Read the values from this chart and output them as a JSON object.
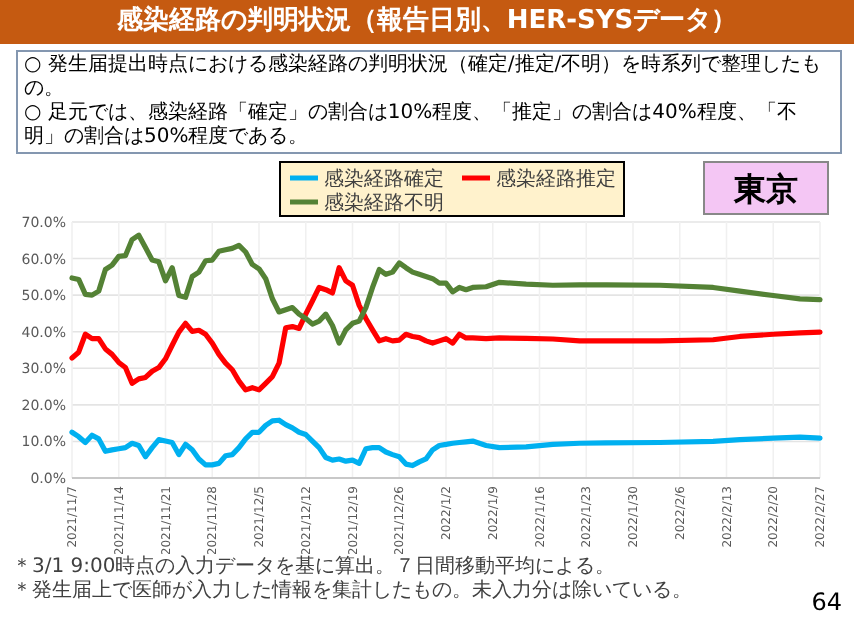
{
  "chart_data": {
    "type": "line",
    "title": "感染経路の判明状況（報告日別、HER-SYSデータ）",
    "annotations": [
      "○ 発生届提出時点における感染経路の判明状況（確定/推定/不明）を時系列で整理したもの。",
      "○ 足元では、感染経路「確定」の割合は10%程度、「推定」の割合は40%程度、「不明」の割合は50%程度である。",
      "東京",
      "＊3/1 9:00時点の入力データを基に算出。７日間移動平均による。",
      "＊発生届上で医師が入力した情報を集計したもの。未入力分は除いている。",
      "64"
    ],
    "x": [
      "2021-11-07",
      "2021-11-08",
      "2021-11-09",
      "2021-11-10",
      "2021-11-11",
      "2021-11-12",
      "2021-11-13",
      "2021-11-14",
      "2021-11-15",
      "2021-11-16",
      "2021-11-17",
      "2021-11-18",
      "2021-11-19",
      "2021-11-20",
      "2021-11-21",
      "2021-11-22",
      "2021-11-23",
      "2021-11-24",
      "2021-11-25",
      "2021-11-26",
      "2021-11-27",
      "2021-11-28",
      "2021-11-29",
      "2021-11-30",
      "2021-12-01",
      "2021-12-02",
      "2021-12-03",
      "2021-12-04",
      "2021-12-05",
      "2021-12-06",
      "2021-12-07",
      "2021-12-08",
      "2021-12-09",
      "2021-12-10",
      "2021-12-11",
      "2021-12-12",
      "2021-12-13",
      "2021-12-14",
      "2021-12-15",
      "2021-12-16",
      "2021-12-17",
      "2021-12-18",
      "2021-12-19",
      "2021-12-20",
      "2021-12-21",
      "2021-12-22",
      "2021-12-23",
      "2021-12-24",
      "2021-12-25",
      "2021-12-26",
      "2021-12-27",
      "2021-12-28",
      "2021-12-29",
      "2021-12-30",
      "2021-12-31",
      "2022-01-01",
      "2022-01-02",
      "2022-01-03",
      "2022-01-04",
      "2022-01-05",
      "2022-01-06",
      "2022-01-08",
      "2022-01-10",
      "2022-01-14",
      "2022-01-18",
      "2022-01-22",
      "2022-01-26",
      "2022-02-03",
      "2022-02-11",
      "2022-02-15",
      "2022-02-20",
      "2022-02-24",
      "2022-02-27"
    ],
    "series": [
      {
        "name": "感染経路確定",
        "color": "#00b0f0",
        "values": [
          12.5,
          11.3,
          9.7,
          11.7,
          10.7,
          7.3,
          7.7,
          8,
          8.3,
          9.5,
          8.9,
          5.8,
          8.3,
          10.5,
          10.1,
          9.7,
          6.4,
          9.2,
          7.7,
          5.2,
          3.6,
          3.6,
          4,
          6.1,
          6.4,
          8.3,
          10.7,
          12.5,
          12.5,
          14.4,
          15.6,
          15.8,
          14.6,
          13.7,
          12.5,
          11.9,
          10.1,
          8.3,
          5.6,
          4.9,
          5.2,
          4.6,
          4.9,
          4,
          8,
          8.3,
          8.3,
          7.1,
          6.4,
          5.8,
          3.8,
          3.4,
          4.4,
          5.2,
          7.7,
          8.9,
          9.2,
          9.5,
          9.7,
          9.9,
          10.1,
          8.9,
          8.3,
          8.5,
          9.2,
          9.5,
          9.6,
          9.7,
          10,
          10.5,
          10.9,
          11.2,
          10.9
        ]
      },
      {
        "name": "感染経路推定",
        "color": "#ff0000",
        "values": [
          32.8,
          34.4,
          39.3,
          38.1,
          38.1,
          35.3,
          33.8,
          31.6,
          30.2,
          25.9,
          27.1,
          27.5,
          29.2,
          30.2,
          32.6,
          36.3,
          39.9,
          42.3,
          40.1,
          40.4,
          39.3,
          36.9,
          33.8,
          31.4,
          29.6,
          26.5,
          24.1,
          24.7,
          24.1,
          25.9,
          27.7,
          31.4,
          41.1,
          41.4,
          40.9,
          44.8,
          48.4,
          52.1,
          51.5,
          50.6,
          57.5,
          53.9,
          52.7,
          47.2,
          43.6,
          40.5,
          37.5,
          38.1,
          37.5,
          37.7,
          39.3,
          38.7,
          38.4,
          37.5,
          36.9,
          37.5,
          38.1,
          36.9,
          39.3,
          38.3,
          38.3,
          38.1,
          38.3,
          38.2,
          38,
          37.5,
          37.5,
          37.5,
          37.8,
          38.7,
          39.3,
          39.7,
          39.9
        ]
      },
      {
        "name": "感染経路不明",
        "color": "#548235",
        "values": [
          54.7,
          54.3,
          50.2,
          50,
          51.1,
          57,
          58.2,
          60.6,
          60.8,
          65.2,
          66.4,
          63,
          59.6,
          59.1,
          53.9,
          57.5,
          49.9,
          49.4,
          55.1,
          56.3,
          59.4,
          59.6,
          62,
          62.4,
          62.8,
          63.6,
          61.8,
          58.4,
          57.2,
          54.5,
          49,
          45.4,
          46,
          46.6,
          44.8,
          43.6,
          42.1,
          42.9,
          44.8,
          41.7,
          36.9,
          40.5,
          42.3,
          42.9,
          46.6,
          52.1,
          57,
          55.7,
          56.3,
          58.8,
          57.5,
          56.3,
          55.7,
          55.1,
          54.5,
          53.3,
          53.3,
          50.9,
          52.1,
          51.5,
          52.1,
          52.3,
          53.5,
          53,
          52.7,
          52.8,
          52.8,
          52.7,
          52.1,
          51.1,
          49.9,
          49,
          48.8
        ]
      }
    ],
    "xlim": [
      "2021-11-07",
      "2022-02-27"
    ],
    "xticks": [
      {
        "value": "2021-11-07",
        "label": "2021/11/7"
      },
      {
        "value": "2021-11-14",
        "label": "2021/11/14"
      },
      {
        "value": "2021-11-21",
        "label": "2021/11/21"
      },
      {
        "value": "2021-11-28",
        "label": "2021/11/28"
      },
      {
        "value": "2021-12-05",
        "label": "2021/12/5"
      },
      {
        "value": "2021-12-12",
        "label": "2021/12/12"
      },
      {
        "value": "2021-12-19",
        "label": "2021/12/19"
      },
      {
        "value": "2021-12-26",
        "label": "2021/12/26"
      },
      {
        "value": "2022-01-02",
        "label": "2022/1/2"
      },
      {
        "value": "2022-01-09",
        "label": "2022/1/9"
      },
      {
        "value": "2022-01-16",
        "label": "2022/1/16"
      },
      {
        "value": "2022-01-23",
        "label": "2022/1/23"
      },
      {
        "value": "2022-01-30",
        "label": "2022/1/30"
      },
      {
        "value": "2022-02-06",
        "label": "2022/2/6"
      },
      {
        "value": "2022-02-13",
        "label": "2022/2/13"
      },
      {
        "value": "2022-02-20",
        "label": "2022/2/20"
      },
      {
        "value": "2022-02-27",
        "label": "2022/2/27"
      }
    ],
    "ylim": [
      0,
      70
    ],
    "yticks": [
      {
        "value": 0,
        "label": "0.0%"
      },
      {
        "value": 10,
        "label": "10.0%"
      },
      {
        "value": 20,
        "label": "20.0%"
      },
      {
        "value": 30,
        "label": "30.0%"
      },
      {
        "value": 40,
        "label": "40.0%"
      },
      {
        "value": 50,
        "label": "50.0%"
      },
      {
        "value": 60,
        "label": "60.0%"
      },
      {
        "value": 70,
        "label": "70.0%"
      }
    ],
    "grid": true,
    "legend": "top",
    "marker": "none",
    "line_style": "solid"
  }
}
